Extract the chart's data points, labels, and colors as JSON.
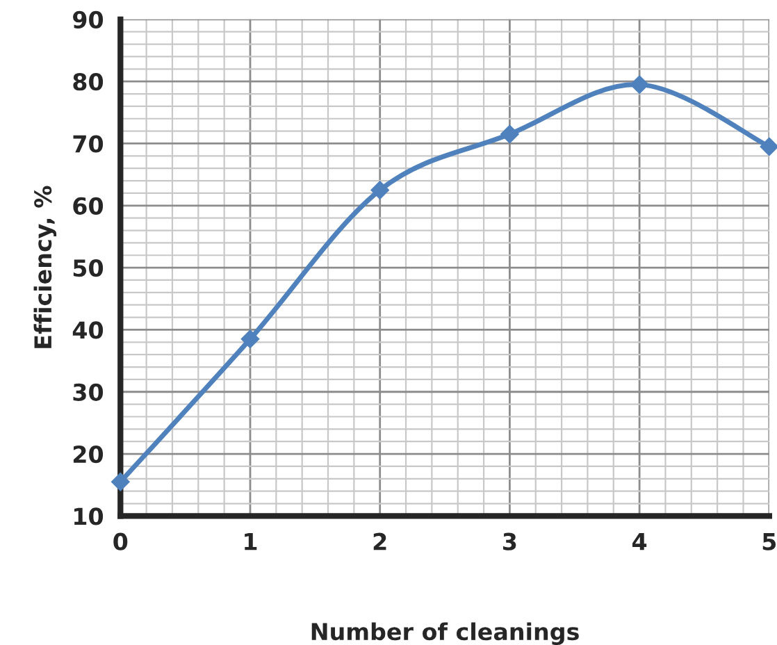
{
  "chart_data": {
    "type": "line",
    "xlabel": "Number of cleanings",
    "ylabel": "Efficiency, %",
    "x": [
      0,
      1,
      2,
      3,
      4,
      5
    ],
    "series": [
      {
        "color": "#4f81bd",
        "values": [
          15.5,
          38.5,
          62.5,
          71.5,
          79.5,
          69.5
        ]
      }
    ],
    "xlim": [
      0,
      5
    ],
    "xticks": [
      0,
      1,
      2,
      3,
      4,
      5
    ],
    "ylim": [
      10,
      90
    ],
    "yticks": [
      10,
      20,
      30,
      40,
      50,
      60,
      70,
      80,
      90
    ],
    "grid": true,
    "marker": "diamond",
    "line_style": "solid",
    "legend": false
  }
}
